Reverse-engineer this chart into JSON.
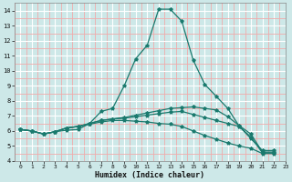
{
  "xlabel": "Humidex (Indice chaleur)",
  "xlim": [
    -0.5,
    23
  ],
  "ylim": [
    4,
    14.5
  ],
  "xticks": [
    0,
    1,
    2,
    3,
    4,
    5,
    6,
    7,
    8,
    9,
    10,
    11,
    12,
    13,
    14,
    15,
    16,
    17,
    18,
    19,
    20,
    21,
    22,
    23
  ],
  "yticks": [
    4,
    5,
    6,
    7,
    8,
    9,
    10,
    11,
    12,
    13,
    14
  ],
  "bg_color": "#cde8e8",
  "line_color": "#1a7a6e",
  "grid_major_color": "#ffffff",
  "grid_minor_color": "#f0aaaa",
  "lines": [
    [
      6.1,
      6.0,
      5.8,
      5.95,
      6.05,
      6.1,
      6.5,
      7.3,
      7.5,
      9.0,
      10.8,
      11.7,
      14.1,
      14.1,
      13.3,
      10.7,
      9.1,
      8.3,
      7.5,
      6.3,
      5.5,
      4.7,
      4.7
    ],
    [
      6.1,
      6.0,
      5.8,
      5.95,
      6.2,
      6.3,
      6.5,
      6.7,
      6.8,
      6.9,
      7.05,
      7.2,
      7.35,
      7.5,
      7.55,
      7.6,
      7.5,
      7.4,
      6.95,
      6.35,
      5.8,
      4.6,
      4.6
    ],
    [
      6.1,
      6.0,
      5.8,
      5.95,
      6.2,
      6.3,
      6.5,
      6.7,
      6.8,
      6.85,
      6.95,
      7.05,
      7.15,
      7.25,
      7.3,
      7.1,
      6.9,
      6.7,
      6.5,
      6.3,
      5.6,
      4.55,
      4.55
    ],
    [
      6.1,
      6.0,
      5.8,
      5.95,
      6.2,
      6.3,
      6.45,
      6.6,
      6.7,
      6.7,
      6.65,
      6.6,
      6.5,
      6.45,
      6.3,
      6.0,
      5.7,
      5.45,
      5.2,
      5.0,
      4.85,
      4.5,
      4.5
    ]
  ]
}
